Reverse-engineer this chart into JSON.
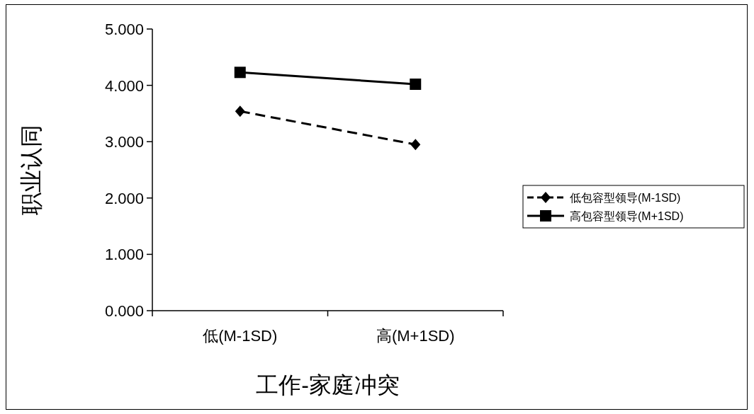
{
  "chart_data": {
    "type": "line",
    "xlabel": "工作-家庭冲突",
    "ylabel": "职业认同",
    "categories": [
      "低(M-1SD)",
      "高(M+1SD)"
    ],
    "ylim": [
      0,
      5
    ],
    "yticks": [
      {
        "value": 0,
        "label": "0.000"
      },
      {
        "value": 1,
        "label": "1.000"
      },
      {
        "value": 2,
        "label": "2.000"
      },
      {
        "value": 3,
        "label": "3.000"
      },
      {
        "value": 4,
        "label": "4.000"
      },
      {
        "value": 5,
        "label": "5.000"
      }
    ],
    "legend": "right",
    "series": [
      {
        "name": "低包容型领导(M-1SD)",
        "color": "#000000",
        "values": [
          3.54,
          2.95
        ],
        "marker": "diamond",
        "line_style": "dashed"
      },
      {
        "name": "高包容型领导(M+1SD)",
        "color": "#000000",
        "values": [
          4.23,
          4.02
        ],
        "marker": "square",
        "line_style": "solid"
      }
    ]
  }
}
